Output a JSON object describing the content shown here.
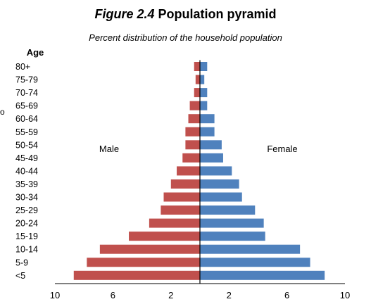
{
  "title_prefix": "Figure 2.4",
  "title_main": "Population pyramid",
  "subtitle": "Percent distribution of the household population",
  "left_mark": "o",
  "chart_data": {
    "type": "bar",
    "orientation": "horizontal-pyramid",
    "y_axis_title": "Age",
    "categories": [
      "80+",
      "75-79",
      "70-74",
      "65-69",
      "60-64",
      "55-59",
      "50-54",
      "45-49",
      "40-44",
      "35-39",
      "30-34",
      "25-29",
      "20-24",
      "15-19",
      "10-14",
      "5-9",
      "<5"
    ],
    "series": [
      {
        "name": "Male",
        "color": "#c0504d",
        "values": [
          0.4,
          0.3,
          0.4,
          0.7,
          0.8,
          1.0,
          1.0,
          1.2,
          1.6,
          2.0,
          2.5,
          2.7,
          3.5,
          4.9,
          6.9,
          7.8,
          8.7
        ]
      },
      {
        "name": "Female",
        "color": "#4f81bd",
        "values": [
          0.5,
          0.3,
          0.5,
          0.5,
          1.0,
          1.0,
          1.5,
          1.6,
          2.2,
          2.7,
          2.9,
          3.8,
          4.4,
          4.5,
          6.9,
          7.6,
          8.6
        ]
      }
    ],
    "xlim": [
      -10,
      10
    ],
    "x_ticks": [
      -10,
      -6,
      -2,
      2,
      6,
      10
    ],
    "x_tick_labels": [
      "10",
      "6",
      "2",
      "2",
      "6",
      "10"
    ],
    "legend_labels": [
      "Male",
      "Female"
    ],
    "legend_placement": "inside, left and right of center"
  }
}
